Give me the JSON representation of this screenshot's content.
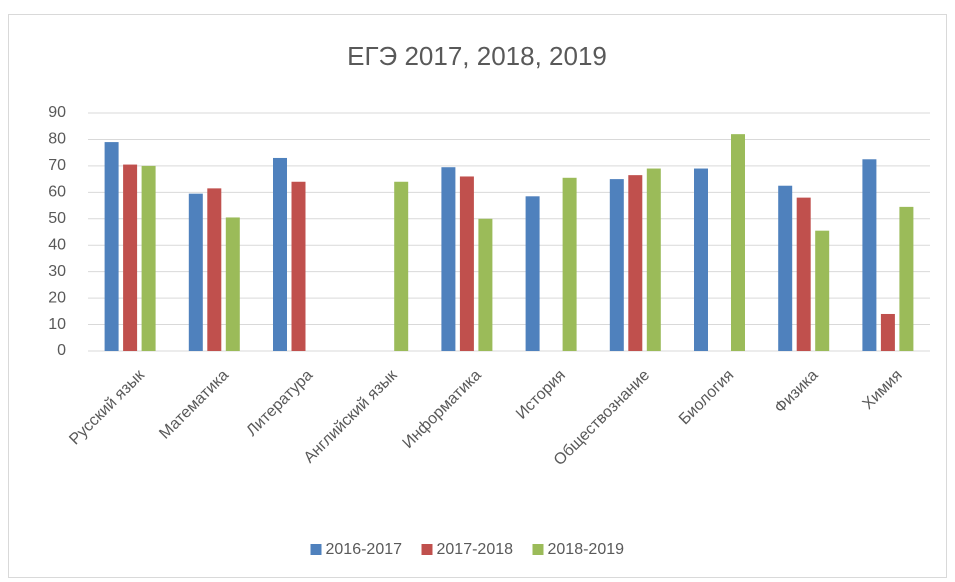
{
  "chart_data": {
    "type": "bar",
    "title": "ЕГЭ 2017, 2018, 2019",
    "categories": [
      "Русский язык",
      "Математика",
      "Литература",
      "Английский язык",
      "Информатика",
      "История",
      "Обществознание",
      "Биология",
      "Физика",
      "Химия"
    ],
    "series": [
      {
        "name": "2016-2017",
        "color": "#4f81bd",
        "values": [
          79,
          59.5,
          73,
          null,
          69.5,
          58.5,
          65,
          69,
          62.5,
          72.5
        ]
      },
      {
        "name": "2017-2018",
        "color": "#c0504d",
        "values": [
          70.5,
          61.5,
          64,
          null,
          66,
          null,
          66.5,
          null,
          58,
          14
        ]
      },
      {
        "name": "2018-2019",
        "color": "#9bbb59",
        "values": [
          70,
          50.5,
          null,
          64,
          50,
          65.5,
          69,
          82,
          45.5,
          54.5
        ]
      }
    ],
    "ylim": [
      0,
      90
    ],
    "yticks": [
      0,
      10,
      20,
      30,
      40,
      50,
      60,
      70,
      80,
      90
    ],
    "grid": true,
    "legend": "bottom"
  }
}
